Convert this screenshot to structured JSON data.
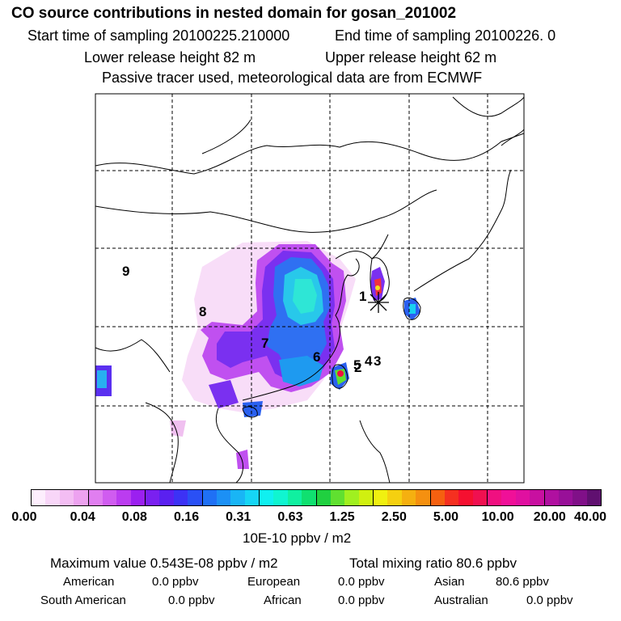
{
  "header": {
    "title": "CO  source contributions in nested domain for gosan_201002",
    "start_label": "Start time of sampling 20100225.210000",
    "end_label": "End time of sampling 20100226.     0",
    "lower_label": "Lower release height   82 m",
    "upper_label": "Upper release height   62 m",
    "tracer_line": "Passive tracer used, meteorological data are from ECMWF"
  },
  "map": {
    "receptor_label": "1",
    "region_labels": [
      "9",
      "8",
      "7",
      "6",
      "5",
      "4",
      "3",
      "2"
    ],
    "colors": {
      "coast": "#000000",
      "grid": "#000000"
    }
  },
  "colorbar": {
    "segments": [
      "#fdeefd",
      "#f8d6f8",
      "#f3bdf3",
      "#eda2f0",
      "#e07ef0",
      "#d05cf0",
      "#bb3cf0",
      "#9b20f0",
      "#7a20f0",
      "#5a20f0",
      "#3c32f5",
      "#2a50f5",
      "#1f70f5",
      "#1c90f5",
      "#19b5f5",
      "#16d5f5",
      "#10f0f0",
      "#10f5d0",
      "#10f0a0",
      "#10e070",
      "#20d040",
      "#60e030",
      "#a0f020",
      "#d0f010",
      "#f0f010",
      "#f5d010",
      "#f5b010",
      "#f59010",
      "#f56010",
      "#f53020",
      "#f51030",
      "#f01050",
      "#f01080",
      "#f01098",
      "#e010a0",
      "#c810a0",
      "#b010a0",
      "#981098",
      "#801088",
      "#601070"
    ],
    "tick_labels": [
      "0.00",
      "0.04",
      "0.08",
      "0.16",
      "0.31",
      "0.63",
      "1.25",
      "2.50",
      "5.00",
      "10.00",
      "20.00",
      "40.00"
    ],
    "units": "10E-10 ppbv / m2"
  },
  "summary": {
    "max_line": "Maximum value  0.543E-08 ppbv / m2",
    "total_line": "Total mixing ratio       80.6 ppbv",
    "regions": [
      {
        "name": "American",
        "value": "0.0 ppbv"
      },
      {
        "name": "European",
        "value": "0.0 ppbv"
      },
      {
        "name": "Asian",
        "value": "80.6 ppbv"
      },
      {
        "name": "South American",
        "value": "0.0 ppbv"
      },
      {
        "name": "African",
        "value": "0.0 ppbv"
      },
      {
        "name": "Australian",
        "value": "0.0 ppbv"
      }
    ]
  }
}
